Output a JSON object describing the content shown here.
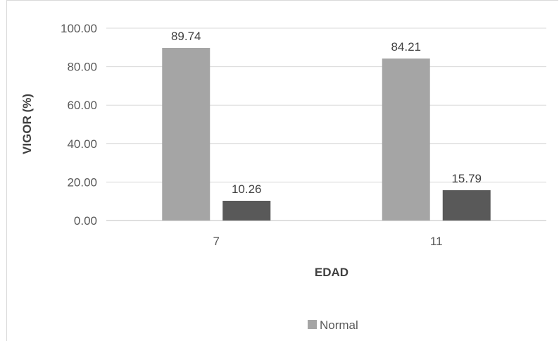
{
  "chart_data": {
    "type": "bar",
    "categories": [
      "7",
      "11"
    ],
    "series": [
      {
        "name": "Normal",
        "values": [
          89.74,
          84.21
        ],
        "color": "#a5a5a5"
      },
      {
        "name": "",
        "values": [
          10.26,
          15.79
        ],
        "color": "#595959"
      }
    ],
    "xlabel": "EDAD",
    "ylabel": "VIGOR (%)",
    "ylim": [
      0,
      100
    ],
    "yticks": [
      "0.00",
      "20.00",
      "40.00",
      "60.00",
      "80.00",
      "100.00"
    ],
    "data_labels": [
      [
        "89.74",
        "84.21"
      ],
      [
        "10.26",
        "15.79"
      ]
    ],
    "legend": {
      "position": "bottom",
      "entries": [
        "Normal"
      ]
    },
    "grid": true
  }
}
